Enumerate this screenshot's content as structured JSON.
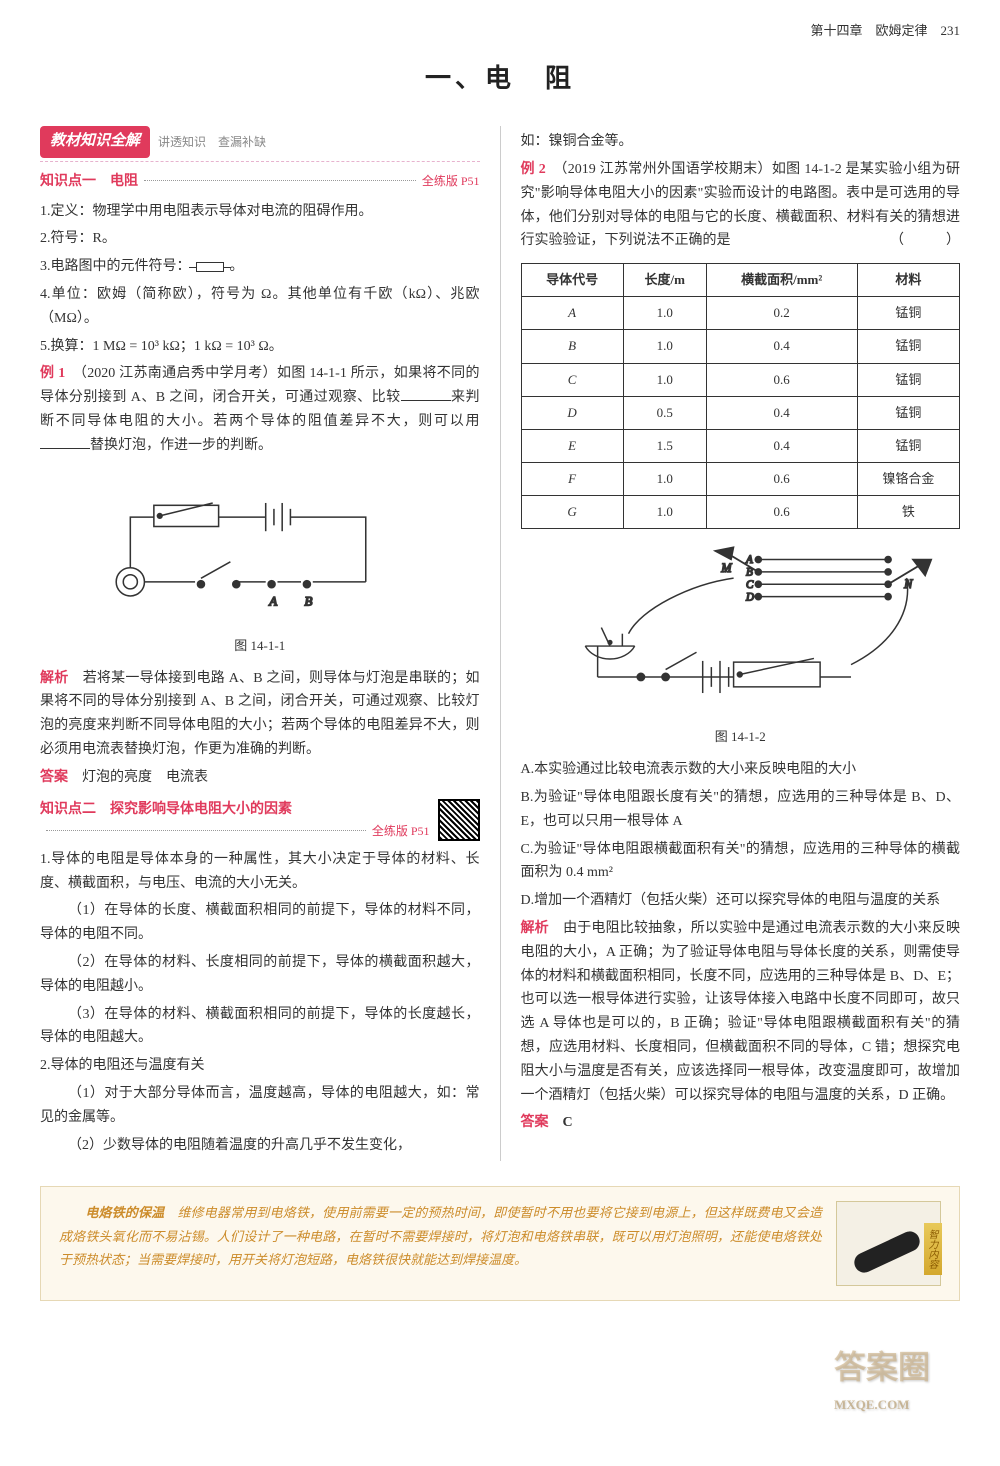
{
  "page_header": "第十四章　欧姆定律　231",
  "main_title": "一、电　阻",
  "section_badge": "教材知识全解",
  "section_sub": "讲透知识　查漏补缺",
  "kp1": {
    "title": "知识点一　电阻",
    "ref": "全练版 P51",
    "p1": "1.定义：物理学中用电阻表示导体对电流的阻碍作用。",
    "p2": "2.符号：R。",
    "p3_pre": "3.电路图中的元件符号：",
    "p3_post": "。",
    "p4": "4.单位：欧姆（简称欧），符号为 Ω。其他单位有千欧（kΩ）、兆欧（MΩ）。",
    "p5": "5.换算：1 MΩ = 10³ kΩ；1 kΩ = 10³ Ω。"
  },
  "ex1": {
    "label": "例 1",
    "src": "（2020 江苏南通启秀中学月考）",
    "body_a": "如图 14-1-1 所示，如果将不同的导体分别接到 A、B 之间，闭合开关，可通过观察、比较",
    "body_b": "来判断不同导体电阻的大小。若两个导体的阻值差异不大，则可以用",
    "body_c": "替换灯泡，作进一步的判断。",
    "fig_caption": "图 14-1-1",
    "analysis_label": "解析",
    "analysis": "若将某一导体接到电路 A、B 之间，则导体与灯泡是串联的；如果将不同的导体分别接到 A、B 之间，闭合开关，可通过观察、比较灯泡的亮度来判断不同导体电阻的大小；若两个导体的电阻差异不大，则必须用电流表替换灯泡，作更为准确的判断。",
    "answer_label": "答案",
    "answer": "灯泡的亮度　电流表"
  },
  "kp2": {
    "title": "知识点二　探究影响导体电阻大小的因素",
    "ref": "全练版 P51",
    "p1": "1.导体的电阻是导体本身的一种属性，其大小决定于导体的材料、长度、横截面积，与电压、电流的大小无关。",
    "p1a": "（1）在导体的长度、横截面积相同的前提下，导体的材料不同，导体的电阻不同。",
    "p1b": "（2）在导体的材料、长度相同的前提下，导体的横截面积越大，导体的电阻越小。",
    "p1c": "（3）在导体的材料、横截面积相同的前提下，导体的长度越长，导体的电阻越大。",
    "p2": "2.导体的电阻还与温度有关",
    "p2a": "（1）对于大部分导体而言，温度越高，导体的电阻越大，如：常见的金属等。",
    "p2b": "（2）少数导体的电阻随着温度的升高几乎不发生变化，"
  },
  "col2_top": "如：镍铜合金等。",
  "ex2": {
    "label": "例 2",
    "src": "（2019 江苏常州外国语学校期末）",
    "body": "如图 14-1-2 是某实验小组为研究\"影响导体电阻大小的因素\"实验而设计的电路图。表中是可选用的导体，他们分别对导体的电阻与它的长度、横截面积、材料有关的猜想进行实验验证，下列说法不正确的是",
    "paren": "（　　　）",
    "table": {
      "headers": [
        "导体代号",
        "长度/m",
        "横截面积/mm²",
        "材料"
      ],
      "rows": [
        [
          "A",
          "1.0",
          "0.2",
          "锰铜"
        ],
        [
          "B",
          "1.0",
          "0.4",
          "锰铜"
        ],
        [
          "C",
          "1.0",
          "0.6",
          "锰铜"
        ],
        [
          "D",
          "0.5",
          "0.4",
          "锰铜"
        ],
        [
          "E",
          "1.5",
          "0.4",
          "锰铜"
        ],
        [
          "F",
          "1.0",
          "0.6",
          "镍铬合金"
        ],
        [
          "G",
          "1.0",
          "0.6",
          "铁"
        ]
      ]
    },
    "fig_caption": "图 14-1-2",
    "optA": "A.本实验通过比较电流表示数的大小来反映电阻的大小",
    "optB": "B.为验证\"导体电阻跟长度有关\"的猜想，应选用的三种导体是 B、D、E，也可以只用一根导体 A",
    "optC": "C.为验证\"导体电阻跟横截面积有关\"的猜想，应选用的三种导体的横截面积为 0.4 mm²",
    "optD": "D.增加一个酒精灯（包括火柴）还可以探究导体的电阻与温度的关系",
    "analysis_label": "解析",
    "analysis": "由于电阻比较抽象，所以实验中是通过电流表示数的大小来反映电阻的大小，A 正确；为了验证导体电阻与导体长度的关系，则需使导体的材料和横截面积相同，长度不同，应选用的三种导体是 B、D、E；也可以选一根导体进行实验，让该导体接入电路中长度不同即可，故只选 A 导体也是可以的，B 正确；验证\"导体电阻跟横截面积有关\"的猜想，应选用材料、长度相同，但横截面积不同的导体，C 错；想探究电阻大小与温度是否有关，应该选择同一根导体，改变温度即可，故增加一个酒精灯（包括火柴）可以探究导体的电阻与温度的关系，D 正确。",
    "answer_label": "答案",
    "answer": "C"
  },
  "footer": {
    "title": "电烙铁的保温",
    "body": "维修电器常用到电烙铁，使用前需要一定的预热时间，即使暂时不用也要将它接到电源上，但这样既费电又会造成烙铁头氧化而不易沾锡。人们设计了一种电路，在暂时不需要焊接时，将灯泡和电烙铁串联，既可以用灯泡照明，还能使电烙铁处于预热状态；当需要焊接时，用开关将灯泡短路，电烙铁很快就能达到焊接温度。",
    "tab": "智力内容"
  },
  "watermark": "答案圈",
  "watermark_sub": "MXQE.COM"
}
